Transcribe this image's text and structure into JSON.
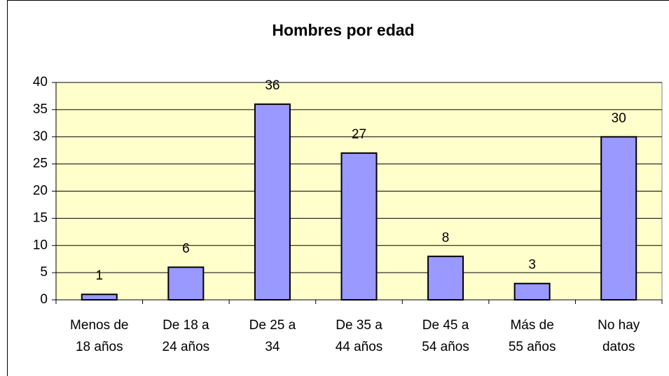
{
  "chart_data": {
    "type": "bar",
    "title": "Hombres por edad",
    "categories": [
      "Menos de\n18 años",
      "De 18 a\n24 años",
      "De 25 a\n34",
      "De 35 a\n44 años",
      "De 45 a\n54 años",
      "Más de\n55 años",
      "No hay\ndatos"
    ],
    "values": [
      1,
      6,
      36,
      27,
      8,
      3,
      30
    ],
    "color": "#9999ff",
    "background": "#ffffcc",
    "ylim": [
      0,
      40
    ],
    "yticks": [
      0,
      5,
      10,
      15,
      20,
      25,
      30,
      35,
      40
    ],
    "grid": true
  }
}
